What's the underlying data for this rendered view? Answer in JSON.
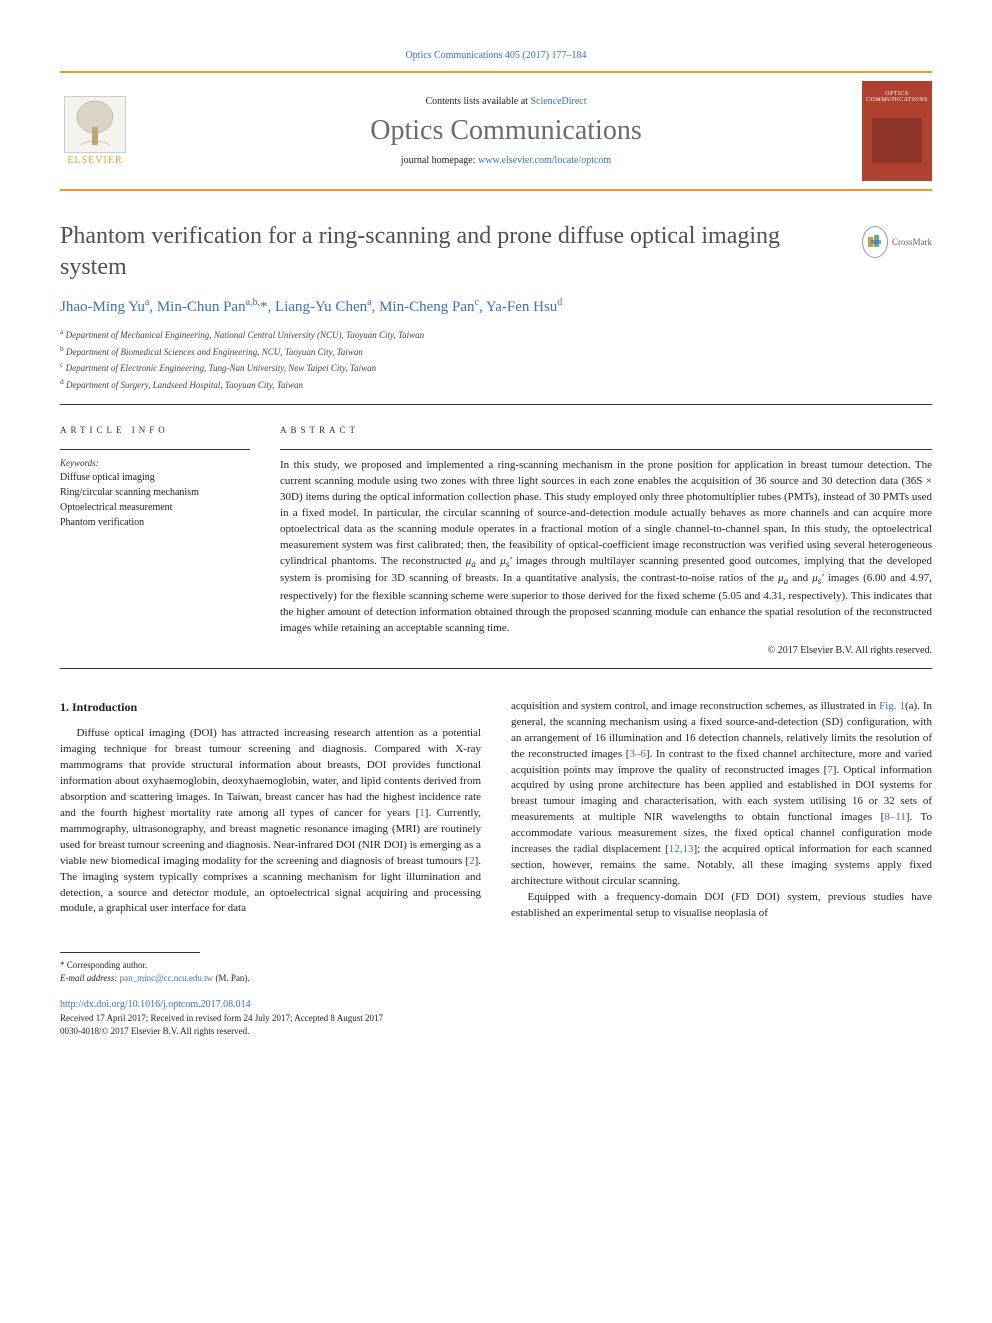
{
  "citation": "Optics Communications 405 (2017) 177–184",
  "header": {
    "contents_prefix": "Contents lists available at ",
    "contents_link": "ScienceDirect",
    "journal_name": "Optics Communications",
    "homepage_prefix": "journal homepage: ",
    "homepage_link": "www.elsevier.com/locate/optcom",
    "publisher": "ELSEVIER",
    "cover_title": "OPTICS COMMUNICATIONS"
  },
  "crossmark": "CrossMark",
  "title": "Phantom verification for a ring-scanning and prone diffuse optical imaging system",
  "authors_html": "Jhao-Ming Yu<sup>a</sup>, Min-Chun Pan<sup>a,b,</sup>*, Liang-Yu Chen<sup>a</sup>, Min-Cheng Pan<sup>c</sup>, Ya-Fen Hsu<sup>d</sup>",
  "affiliations": [
    "Department of Mechanical Engineering, National Central University (NCU), Taoyuan City, Taiwan",
    "Department of Biomedical Sciences and Engineering, NCU, Taoyuan City, Taiwan",
    "Department of Electronic Engineering, Tung-Nan University, New Taipei City, Taiwan",
    "Department of Surgery, Landseed Hospital, Taoyuan City, Taiwan"
  ],
  "aff_letters": [
    "a",
    "b",
    "c",
    "d"
  ],
  "info_label": "ARTICLE INFO",
  "abstract_label": "ABSTRACT",
  "keywords_label": "Keywords:",
  "keywords": [
    "Diffuse optical imaging",
    "Ring/circular scanning mechanism",
    "Optoelectrical measurement",
    "Phantom verification"
  ],
  "abstract": "In this study, we proposed and implemented a ring-scanning mechanism in the prone position for application in breast tumour detection. The current scanning module using two zones with three light sources in each zone enables the acquisition of 36 source and 30 detection data (36S × 30D) items during the optical information collection phase. This study employed only three photomultiplier tubes (PMTs), instead of 30 PMTs used in a fixed model. In particular, the circular scanning of source-and-detection module actually behaves as more channels and can acquire more optoelectrical data as the scanning module operates in a fractional motion of a single channel-to-channel span. In this study, the optoelectrical measurement system was first calibrated; then, the feasibility of optical-coefficient image reconstruction was verified using several heterogeneous cylindrical phantoms. The reconstructed μa and μs′ images through multilayer scanning presented good outcomes, implying that the developed system is promising for 3D scanning of breasts. In a quantitative analysis, the contrast-to-noise ratios of the μa and μs′ images (6.00 and 4.97, respectively) for the flexible scanning scheme were superior to those derived for the fixed scheme (5.05 and 4.31, respectively). This indicates that the higher amount of detection information obtained through the proposed scanning module can enhance the spatial resolution of the reconstructed images while retaining an acceptable scanning time.",
  "copyright": "© 2017 Elsevier B.V. All rights reserved.",
  "intro_heading": "1. Introduction",
  "intro_left": "Diffuse optical imaging (DOI) has attracted increasing research attention as a potential imaging technique for breast tumour screening and diagnosis. Compared with X-ray mammograms that provide structural information about breasts, DOI provides functional information about oxyhaemoglobin, deoxyhaemoglobin, water, and lipid contents derived from absorption and scattering images. In Taiwan, breast cancer has had the highest incidence rate and the fourth highest mortality rate among all types of cancer for years [1]. Currently, mammography, ultrasonography, and breast magnetic resonance imaging (MRI) are routinely used for breast tumour screening and diagnosis. Near-infrared DOI (NIR DOI) is emerging as a viable new biomedical imaging modality for the screening and diagnosis of breast tumours [2]. The imaging system typically comprises a scanning mechanism for light illumination and detection, a source and detector module, an optoelectrical signal acquiring and processing module, a graphical user interface for data",
  "intro_right_p1": "acquisition and system control, and image reconstruction schemes, as illustrated in Fig. 1(a). In general, the scanning mechanism using a fixed source-and-detection (SD) configuration, with an arrangement of 16 illumination and 16 detection channels, relatively limits the resolution of the reconstructed images [3–6]. In contrast to the fixed channel architecture, more and varied acquisition points may improve the quality of reconstructed images [7]. Optical information acquired by using prone architecture has been applied and established in DOI systems for breast tumour imaging and characterisation, with each system utilising 16 or 32 sets of measurements at multiple NIR wavelengths to obtain functional images [8–11]. To accommodate various measurement sizes, the fixed optical channel configuration mode increases the radial displacement [12,13]; the acquired optical information for each scanned section, however, remains the same. Notably, all these imaging systems apply fixed architecture without circular scanning.",
  "intro_right_p2": "Equipped with a frequency-domain DOI (FD DOI) system, previous studies have established an experimental setup to visualise neoplasia of",
  "footer": {
    "corresponding": "* Corresponding author.",
    "email_label": "E-mail address: ",
    "email": "pan_minc@cc.ncu.edu.tw",
    "email_person": " (M. Pan).",
    "doi": "http://dx.doi.org/10.1016/j.optcom.2017.08.014",
    "received": "Received 17 April 2017; Received in revised form 24 July 2017; Accepted 8 August 2017",
    "issn_copyright": "0030-4018/© 2017 Elsevier B.V. All rights reserved."
  }
}
